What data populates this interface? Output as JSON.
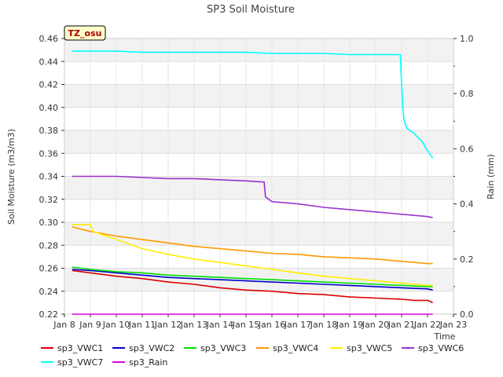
{
  "chart_data": {
    "type": "line",
    "title": "SP3 Soil Moisture",
    "badge": "TZ_osu",
    "xlabel": "Time",
    "ylabel": "Soil Moisture (m3/m3)",
    "y2label": "Rain (mm)",
    "x_ticks": [
      {
        "x": 8,
        "label": "Jan 8"
      },
      {
        "x": 9,
        "label": "Jan 9"
      },
      {
        "x": 10,
        "label": "Jan 10"
      },
      {
        "x": 11,
        "label": "Jan 11"
      },
      {
        "x": 12,
        "label": "Jan 12"
      },
      {
        "x": 13,
        "label": "Jan 13"
      },
      {
        "x": 14,
        "label": "Jan 14"
      },
      {
        "x": 15,
        "label": "Jan 15"
      },
      {
        "x": 16,
        "label": "Jan 16"
      },
      {
        "x": 17,
        "label": "Jan 17"
      },
      {
        "x": 18,
        "label": "Jan 18"
      },
      {
        "x": 19,
        "label": "Jan 19"
      },
      {
        "x": 20,
        "label": "Jan 20"
      },
      {
        "x": 21,
        "label": "Jan 21"
      },
      {
        "x": 22,
        "label": "Jan 22"
      },
      {
        "x": 23,
        "label": "Jan 23"
      }
    ],
    "xlim": [
      8,
      23
    ],
    "ylim": [
      0.22,
      0.46
    ],
    "y_ticks": [
      "0.22",
      "0.24",
      "0.26",
      "0.28",
      "0.30",
      "0.32",
      "0.34",
      "0.36",
      "0.38",
      "0.40",
      "0.42",
      "0.44",
      "0.46"
    ],
    "y2lim": [
      0.0,
      1.0
    ],
    "y2_ticks": [
      "0.0",
      "0.2",
      "0.4",
      "0.6",
      "0.8",
      "1.0"
    ],
    "grid": true,
    "legend_position": "bottom",
    "series": [
      {
        "name": "sp3_VWC1",
        "color": "#dd0000",
        "axis": "left",
        "x": [
          8.3,
          9.0,
          10.0,
          11.0,
          12.0,
          13.0,
          14.0,
          15.0,
          16.0,
          17.0,
          18.0,
          19.0,
          20.0,
          21.0,
          21.5,
          22.0,
          22.2
        ],
        "y": [
          0.258,
          0.256,
          0.253,
          0.251,
          0.248,
          0.246,
          0.243,
          0.241,
          0.24,
          0.238,
          0.237,
          0.235,
          0.234,
          0.233,
          0.232,
          0.232,
          0.23
        ]
      },
      {
        "name": "sp3_VWC2",
        "color": "#0000cc",
        "axis": "left",
        "x": [
          8.3,
          9.0,
          10.0,
          11.0,
          12.0,
          13.0,
          14.0,
          15.0,
          16.0,
          17.0,
          18.0,
          19.0,
          20.0,
          21.0,
          22.0,
          22.2
        ],
        "y": [
          0.259,
          0.258,
          0.256,
          0.254,
          0.252,
          0.251,
          0.25,
          0.249,
          0.248,
          0.247,
          0.246,
          0.245,
          0.244,
          0.243,
          0.242,
          0.241
        ]
      },
      {
        "name": "sp3_VWC3",
        "color": "#00dd00",
        "axis": "left",
        "x": [
          8.3,
          9.0,
          10.0,
          11.0,
          12.0,
          13.0,
          14.0,
          15.0,
          16.0,
          17.0,
          18.0,
          19.0,
          20.0,
          21.0,
          22.0,
          22.2
        ],
        "y": [
          0.261,
          0.259,
          0.257,
          0.256,
          0.254,
          0.253,
          0.252,
          0.251,
          0.25,
          0.249,
          0.248,
          0.247,
          0.246,
          0.245,
          0.244,
          0.244
        ]
      },
      {
        "name": "sp3_VWC4",
        "color": "#ff9900",
        "axis": "left",
        "x": [
          8.3,
          9.0,
          10.0,
          11.0,
          12.0,
          13.0,
          14.0,
          15.0,
          16.0,
          17.0,
          18.0,
          19.0,
          20.0,
          21.0,
          22.0,
          22.2
        ],
        "y": [
          0.296,
          0.292,
          0.288,
          0.285,
          0.282,
          0.279,
          0.277,
          0.275,
          0.273,
          0.272,
          0.27,
          0.269,
          0.268,
          0.266,
          0.264,
          0.264
        ]
      },
      {
        "name": "sp3_VWC5",
        "color": "#ffee00",
        "axis": "left",
        "x": [
          8.3,
          9.0,
          9.1,
          10.0,
          11.0,
          12.0,
          13.0,
          14.0,
          15.0,
          16.0,
          17.0,
          18.0,
          19.0,
          20.0,
          21.0,
          22.0,
          22.2
        ],
        "y": [
          0.298,
          0.298,
          0.292,
          0.285,
          0.277,
          0.272,
          0.268,
          0.265,
          0.262,
          0.259,
          0.256,
          0.253,
          0.251,
          0.249,
          0.247,
          0.245,
          0.245
        ]
      },
      {
        "name": "sp3_VWC6",
        "color": "#9933cc",
        "axis": "left",
        "x": [
          8.3,
          9.0,
          10.0,
          11.0,
          12.0,
          13.0,
          14.0,
          15.0,
          15.7,
          15.75,
          16.0,
          17.0,
          18.0,
          19.0,
          20.0,
          21.0,
          22.0,
          22.2
        ],
        "y": [
          0.34,
          0.34,
          0.34,
          0.339,
          0.338,
          0.338,
          0.337,
          0.336,
          0.335,
          0.322,
          0.318,
          0.316,
          0.313,
          0.311,
          0.309,
          0.307,
          0.305,
          0.304
        ]
      },
      {
        "name": "sp3_VWC7",
        "color": "#00ffff",
        "axis": "left",
        "x": [
          8.3,
          9.0,
          10.0,
          11.0,
          12.0,
          13.0,
          14.0,
          15.0,
          16.0,
          17.0,
          18.0,
          19.0,
          20.0,
          20.95,
          21.0,
          21.05,
          21.1,
          21.2,
          21.5,
          21.8,
          22.0,
          22.2
        ],
        "y": [
          0.449,
          0.449,
          0.449,
          0.448,
          0.448,
          0.448,
          0.448,
          0.448,
          0.447,
          0.447,
          0.447,
          0.446,
          0.446,
          0.446,
          0.42,
          0.4,
          0.388,
          0.382,
          0.377,
          0.37,
          0.362,
          0.356
        ]
      },
      {
        "name": "sp3_Rain",
        "color": "#dd00dd",
        "axis": "right",
        "x": [
          8.3,
          22.2
        ],
        "y": [
          0.0,
          0.0
        ]
      }
    ]
  }
}
